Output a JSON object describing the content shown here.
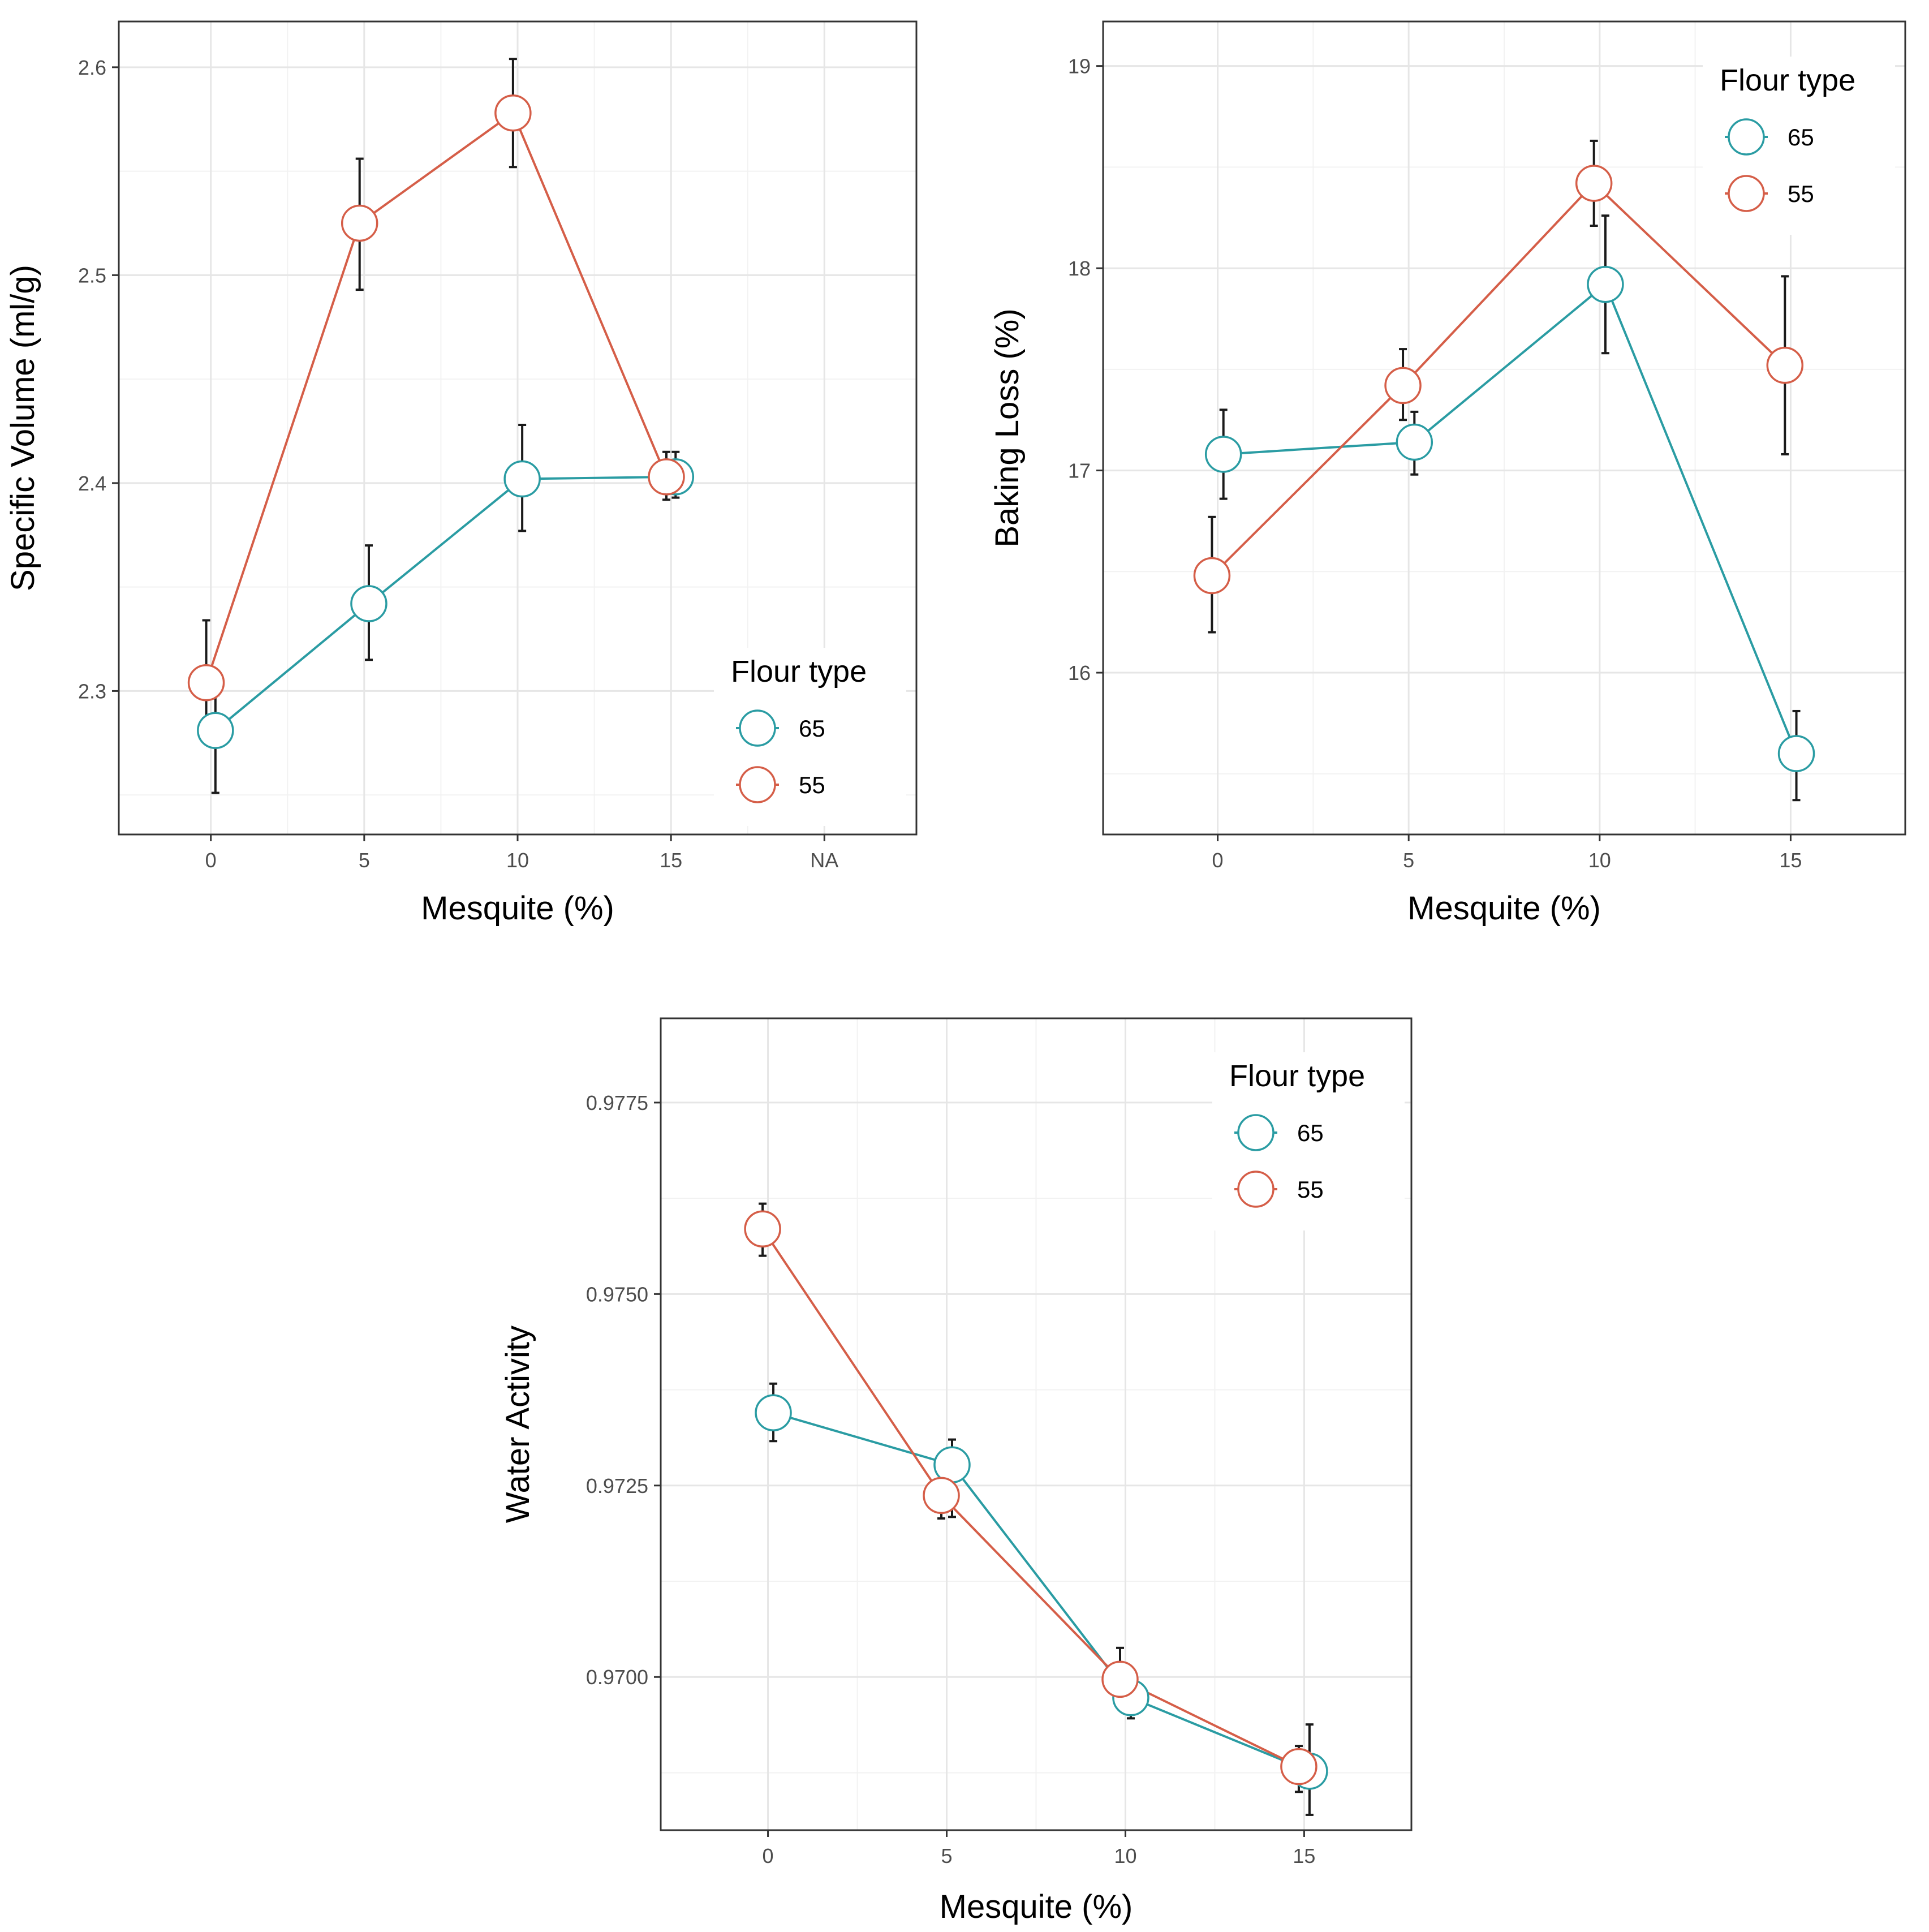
{
  "colors": {
    "series_65": "#2a9ca3",
    "series_55": "#d55e48",
    "grid_major": "#e6e6e6",
    "grid_minor": "#f2f2f2",
    "panel_border": "#333333",
    "errorbar": "#1a1a1a",
    "point_fill": "#ffffff"
  },
  "chart_data": [
    {
      "id": "specific-volume",
      "type": "line",
      "xlabel": "Mesquite (%)",
      "ylabel": "Specific Volume (ml/g)",
      "x_tick_labels": [
        "0",
        "5",
        "10",
        "15",
        "NA"
      ],
      "y_ticks": [
        2.3,
        2.4,
        2.5,
        2.6
      ],
      "y_tick_labels": [
        "2.3",
        "2.4",
        "2.5",
        "2.6"
      ],
      "xlim": [
        -0.6,
        4.6
      ],
      "ylim": [
        2.231,
        2.622
      ],
      "grid": true,
      "legend": {
        "title": "Flour type",
        "placement": "bottom-right",
        "entries": [
          "65",
          "55"
        ]
      },
      "series": [
        {
          "name": "65",
          "color_key": "series_65",
          "x": [
            0.03,
            1.03,
            2.03,
            3.03
          ],
          "y": [
            2.281,
            2.342,
            2.402,
            2.403
          ],
          "err_low": [
            2.251,
            2.315,
            2.377,
            2.393
          ],
          "err_high": [
            2.298,
            2.37,
            2.428,
            2.415
          ]
        },
        {
          "name": "55",
          "color_key": "series_55",
          "x": [
            -0.03,
            0.97,
            1.97,
            2.97
          ],
          "y": [
            2.304,
            2.525,
            2.578,
            2.403
          ],
          "err_low": [
            2.287,
            2.493,
            2.552,
            2.392
          ],
          "err_high": [
            2.334,
            2.556,
            2.604,
            2.415
          ]
        }
      ]
    },
    {
      "id": "baking-loss",
      "type": "line",
      "xlabel": "Mesquite (%)",
      "ylabel": "Baking Loss (%)",
      "x_tick_labels": [
        "0",
        "5",
        "10",
        "15"
      ],
      "y_ticks": [
        16,
        17,
        18,
        19
      ],
      "y_tick_labels": [
        "16",
        "17",
        "18",
        "19"
      ],
      "xlim": [
        -0.6,
        3.6
      ],
      "ylim": [
        15.2,
        19.22
      ],
      "grid": true,
      "legend": {
        "title": "Flour type",
        "placement": "top-right",
        "entries": [
          "65",
          "55"
        ]
      },
      "series": [
        {
          "name": "65",
          "color_key": "series_65",
          "x": [
            0.03,
            1.03,
            2.03,
            3.03
          ],
          "y": [
            17.08,
            17.14,
            17.92,
            15.6
          ],
          "err_low": [
            16.86,
            16.98,
            17.58,
            15.37
          ],
          "err_high": [
            17.3,
            17.29,
            18.26,
            15.81
          ]
        },
        {
          "name": "55",
          "color_key": "series_55",
          "x": [
            -0.03,
            0.97,
            1.97,
            2.97
          ],
          "y": [
            16.48,
            17.42,
            18.42,
            17.52
          ],
          "err_low": [
            16.2,
            17.25,
            18.21,
            17.08
          ],
          "err_high": [
            16.77,
            17.6,
            18.63,
            17.96
          ]
        }
      ]
    },
    {
      "id": "water-activity",
      "type": "line",
      "xlabel": "Mesquite (%)",
      "ylabel": "Water Activity",
      "x_tick_labels": [
        "0",
        "5",
        "10",
        "15"
      ],
      "y_ticks": [
        0.97,
        0.9725,
        0.975,
        0.9775
      ],
      "y_tick_labels": [
        "0.9700",
        "0.9725",
        "0.9750",
        "0.9775"
      ],
      "xlim": [
        -0.6,
        3.6
      ],
      "ylim": [
        0.968,
        0.9786
      ],
      "grid": true,
      "legend": {
        "title": "Flour type",
        "placement": "top-right",
        "entries": [
          "65",
          "55"
        ]
      },
      "series": [
        {
          "name": "65",
          "color_key": "series_65",
          "x": [
            0.03,
            1.03,
            2.03,
            3.03
          ],
          "y": [
            0.97345,
            0.97277,
            0.96973,
            0.96877
          ],
          "err_low": [
            0.97308,
            0.97209,
            0.96946,
            0.9682
          ],
          "err_high": [
            0.97383,
            0.9731,
            0.97005,
            0.96938
          ]
        },
        {
          "name": "55",
          "color_key": "series_55",
          "x": [
            -0.03,
            0.97,
            1.97,
            2.97
          ],
          "y": [
            0.97585,
            0.97237,
            0.96997,
            0.96883
          ],
          "err_low": [
            0.9755,
            0.97207,
            0.96975,
            0.9685
          ],
          "err_high": [
            0.97618,
            0.97268,
            0.97038,
            0.9691
          ]
        }
      ]
    }
  ]
}
